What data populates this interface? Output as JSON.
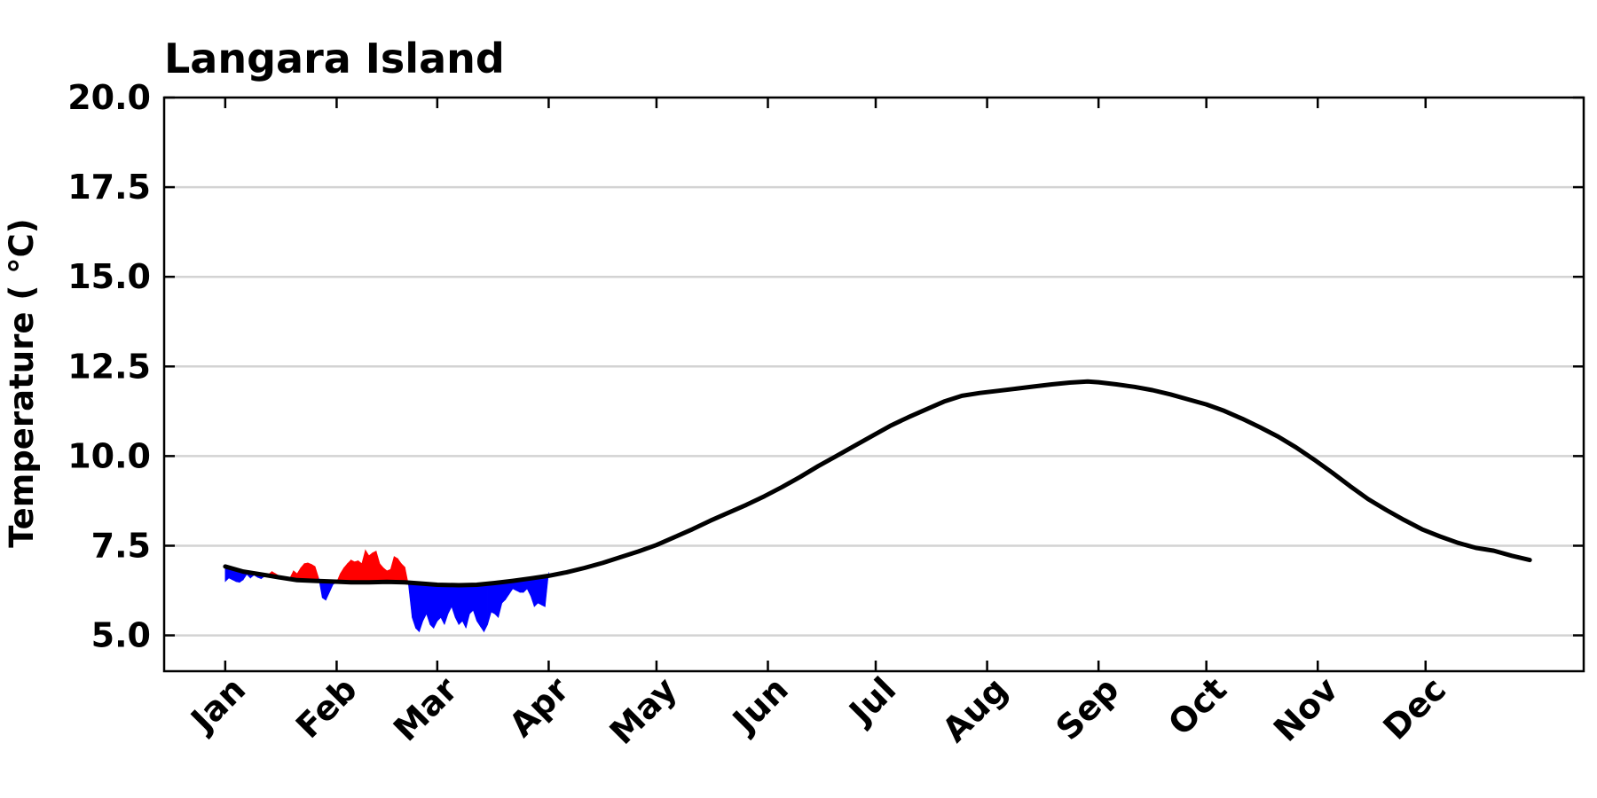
{
  "chart_data": {
    "type": "line",
    "title": "Langara Island",
    "xlabel": "",
    "ylabel": "Temperature ( °C)",
    "ylim": [
      4.0,
      20.0
    ],
    "yticks": [
      "5.0",
      "7.5",
      "10.0",
      "12.5",
      "15.0",
      "17.5",
      "20.0"
    ],
    "xlim": [
      -17,
      378
    ],
    "xticks": [
      {
        "label": "Jan",
        "day": 0
      },
      {
        "label": "Feb",
        "day": 31
      },
      {
        "label": "Mar",
        "day": 59
      },
      {
        "label": "Apr",
        "day": 90
      },
      {
        "label": "May",
        "day": 120
      },
      {
        "label": "Jun",
        "day": 151
      },
      {
        "label": "Jul",
        "day": 181
      },
      {
        "label": "Aug",
        "day": 212
      },
      {
        "label": "Sep",
        "day": 243
      },
      {
        "label": "Oct",
        "day": 273
      },
      {
        "label": "Nov",
        "day": 304
      },
      {
        "label": "Dec",
        "day": 334
      }
    ],
    "grid": "horizontal",
    "colors": {
      "climatology": "#000000",
      "above": "#ff0000",
      "below": "#0000ff",
      "grid": "#d3d3d3"
    },
    "series": [
      {
        "role": "climatology",
        "x": [
          0,
          5,
          10,
          15,
          20,
          25,
          30,
          35,
          40,
          45,
          50,
          55,
          59,
          65,
          70,
          75,
          80,
          85,
          90,
          95,
          100,
          105,
          110,
          115,
          120,
          125,
          130,
          135,
          140,
          145,
          150,
          155,
          160,
          165,
          170,
          175,
          180,
          185,
          190,
          195,
          200,
          205,
          210,
          215,
          220,
          225,
          230,
          235,
          240,
          243,
          248,
          253,
          258,
          263,
          268,
          273,
          278,
          283,
          288,
          293,
          298,
          303,
          308,
          313,
          318,
          323,
          328,
          333,
          338,
          343,
          348,
          353,
          358,
          363
        ],
        "y": [
          6.92,
          6.78,
          6.7,
          6.62,
          6.54,
          6.52,
          6.5,
          6.48,
          6.48,
          6.49,
          6.48,
          6.44,
          6.41,
          6.4,
          6.41,
          6.46,
          6.52,
          6.59,
          6.66,
          6.76,
          6.88,
          7.02,
          7.18,
          7.34,
          7.52,
          7.74,
          7.96,
          8.2,
          8.42,
          8.64,
          8.88,
          9.14,
          9.42,
          9.72,
          10.0,
          10.28,
          10.56,
          10.84,
          11.08,
          11.3,
          11.52,
          11.68,
          11.76,
          11.82,
          11.88,
          11.94,
          12.0,
          12.05,
          12.08,
          12.06,
          12.0,
          11.93,
          11.84,
          11.72,
          11.58,
          11.44,
          11.26,
          11.04,
          10.8,
          10.54,
          10.24,
          9.9,
          9.54,
          9.16,
          8.8,
          8.5,
          8.22,
          7.96,
          7.76,
          7.58,
          7.44,
          7.36,
          7.22,
          7.1
        ]
      },
      {
        "role": "observed",
        "x": [
          0,
          1,
          2,
          3,
          4,
          5,
          6,
          7,
          8,
          9,
          10,
          11,
          12,
          13,
          14,
          15,
          16,
          17,
          18,
          19,
          20,
          21,
          22,
          23,
          24,
          25,
          26,
          27,
          28,
          29,
          30,
          31,
          32,
          33,
          34,
          35,
          36,
          37,
          38,
          39,
          40,
          41,
          42,
          43,
          44,
          45,
          46,
          47,
          48,
          49,
          50,
          51,
          52,
          53,
          54,
          55,
          56,
          57,
          58,
          59,
          60,
          61,
          62,
          63,
          64,
          65,
          66,
          67,
          68,
          69,
          70,
          71,
          72,
          73,
          74,
          75,
          76,
          77,
          78,
          79,
          80,
          81,
          82,
          83,
          84,
          85,
          86,
          87,
          88,
          89,
          90
        ],
        "y": [
          6.5,
          6.6,
          6.55,
          6.5,
          6.48,
          6.55,
          6.7,
          6.6,
          6.68,
          6.62,
          6.58,
          6.65,
          6.7,
          6.78,
          6.72,
          6.66,
          6.6,
          6.56,
          6.6,
          6.8,
          6.72,
          6.88,
          7.0,
          7.02,
          6.98,
          6.92,
          6.6,
          6.05,
          5.98,
          6.2,
          6.42,
          6.48,
          6.72,
          6.88,
          7.0,
          7.1,
          7.05,
          7.08,
          7.0,
          7.38,
          7.22,
          7.3,
          7.35,
          7.0,
          6.88,
          6.8,
          6.84,
          7.2,
          7.14,
          7.0,
          6.9,
          6.4,
          5.5,
          5.2,
          5.1,
          5.4,
          5.6,
          5.3,
          5.2,
          5.4,
          5.5,
          5.3,
          5.6,
          5.8,
          5.5,
          5.3,
          5.4,
          5.2,
          5.6,
          5.7,
          5.4,
          5.25,
          5.1,
          5.3,
          5.65,
          5.6,
          5.5,
          5.9,
          6.0,
          6.15,
          6.3,
          6.25,
          6.2,
          6.2,
          6.3,
          6.1,
          5.8,
          5.9,
          5.85,
          5.8,
          6.76
        ]
      }
    ]
  }
}
